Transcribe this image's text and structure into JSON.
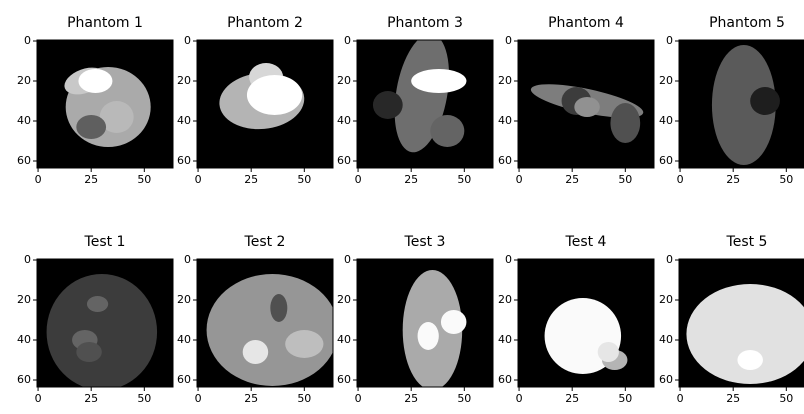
{
  "chart_data": [
    {
      "type": "image",
      "title": "Phantom 1",
      "cmap": "gray",
      "xlim": [
        -0.5,
        63.5
      ],
      "ylim": [
        63.5,
        -0.5
      ],
      "xticks": [
        0,
        25,
        50
      ],
      "yticks": [
        0,
        20,
        40,
        60
      ]
    },
    {
      "type": "image",
      "title": "Phantom 2",
      "cmap": "gray",
      "xlim": [
        -0.5,
        63.5
      ],
      "ylim": [
        63.5,
        -0.5
      ],
      "xticks": [
        0,
        25,
        50
      ],
      "yticks": [
        0,
        20,
        40,
        60
      ]
    },
    {
      "type": "image",
      "title": "Phantom 3",
      "cmap": "gray",
      "xlim": [
        -0.5,
        63.5
      ],
      "ylim": [
        63.5,
        -0.5
      ],
      "xticks": [
        0,
        25,
        50
      ],
      "yticks": [
        0,
        20,
        40,
        60
      ]
    },
    {
      "type": "image",
      "title": "Phantom 4",
      "cmap": "gray",
      "xlim": [
        -0.5,
        63.5
      ],
      "ylim": [
        63.5,
        -0.5
      ],
      "xticks": [
        0,
        25,
        50
      ],
      "yticks": [
        0,
        20,
        40,
        60
      ]
    },
    {
      "type": "image",
      "title": "Phantom 5",
      "cmap": "gray",
      "xlim": [
        -0.5,
        63.5
      ],
      "ylim": [
        63.5,
        -0.5
      ],
      "xticks": [
        0,
        25,
        50
      ],
      "yticks": [
        0,
        20,
        40,
        60
      ]
    },
    {
      "type": "image",
      "title": "Test 1",
      "cmap": "gray",
      "xlim": [
        -0.5,
        63.5
      ],
      "ylim": [
        63.5,
        -0.5
      ],
      "xticks": [
        0,
        25,
        50
      ],
      "yticks": [
        0,
        20,
        40,
        60
      ]
    },
    {
      "type": "image",
      "title": "Test 2",
      "cmap": "gray",
      "xlim": [
        -0.5,
        63.5
      ],
      "ylim": [
        63.5,
        -0.5
      ],
      "xticks": [
        0,
        25,
        50
      ],
      "yticks": [
        0,
        20,
        40,
        60
      ]
    },
    {
      "type": "image",
      "title": "Test 3",
      "cmap": "gray",
      "xlim": [
        -0.5,
        63.5
      ],
      "ylim": [
        63.5,
        -0.5
      ],
      "xticks": [
        0,
        25,
        50
      ],
      "yticks": [
        0,
        20,
        40,
        60
      ]
    },
    {
      "type": "image",
      "title": "Test 4",
      "cmap": "gray",
      "xlim": [
        -0.5,
        63.5
      ],
      "ylim": [
        63.5,
        -0.5
      ],
      "xticks": [
        0,
        25,
        50
      ],
      "yticks": [
        0,
        20,
        40,
        60
      ]
    },
    {
      "type": "image",
      "title": "Test 5",
      "cmap": "gray",
      "xlim": [
        -0.5,
        63.5
      ],
      "ylim": [
        63.5,
        -0.5
      ],
      "xticks": [
        0,
        25,
        50
      ],
      "yticks": [
        0,
        20,
        40,
        60
      ]
    }
  ]
}
